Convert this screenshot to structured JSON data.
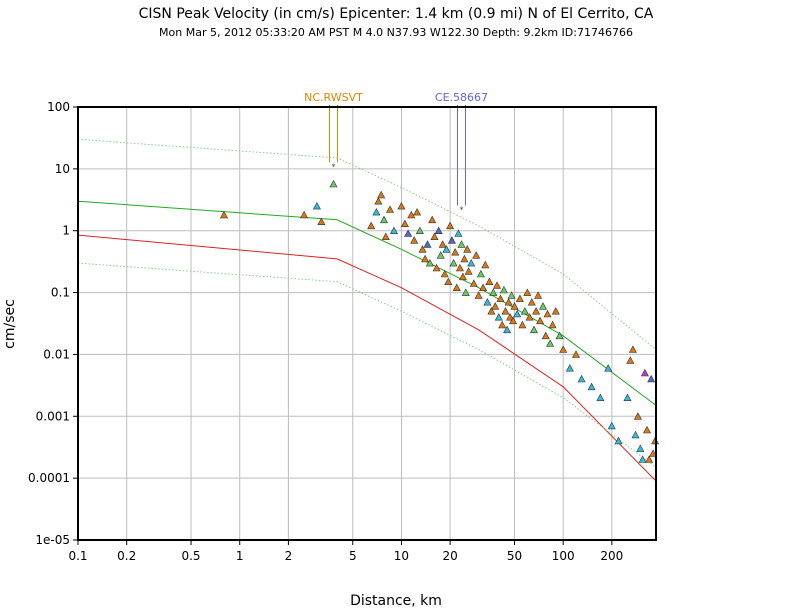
{
  "header": {
    "title": "CISN Peak Velocity (in cm/s) Epicenter: 1.4 km (0.9 mi) N of El Cerrito, CA",
    "subtitle": "Mon Mar  5, 2012 05:33:20 AM PST   M 4.0   N37.93 W122.30   Depth: 9.2km   ID:71746766"
  },
  "chart_data": {
    "type": "scatter",
    "title": "CISN Peak Velocity (in cm/s) Epicenter: 1.4 km (0.9 mi) N of El Cerrito, CA",
    "subtitle": "Mon Mar  5, 2012 05:33:20 AM PST   M 4.0   N37.93 W122.30   Depth: 9.2km   ID:71746766",
    "xlabel": "Distance, km",
    "ylabel": "cm/sec",
    "xscale": "log",
    "yscale": "log",
    "xlim": [
      0.1,
      375
    ],
    "ylim": [
      1e-05,
      100
    ],
    "grid": true,
    "x_ticks": [
      "0.1",
      "0.2",
      "0.5",
      "1",
      "2",
      "5",
      "10",
      "20",
      "50",
      "100",
      "200"
    ],
    "y_ticks": [
      "1e-05",
      "0.0001",
      "0.001",
      "0.01",
      "0.1",
      "1",
      "10",
      "100"
    ],
    "curves": [
      {
        "color": "#88cc88",
        "style": "dotted",
        "x": [
          0.1,
          4,
          10,
          30,
          100,
          375
        ],
        "y": [
          30,
          15,
          5,
          1.2,
          0.2,
          0.012
        ]
      },
      {
        "color": "#22aa22",
        "style": "solid",
        "x": [
          0.1,
          4,
          10,
          30,
          100,
          375
        ],
        "y": [
          3,
          1.5,
          0.5,
          0.12,
          0.02,
          0.0015
        ]
      },
      {
        "color": "#dd2222",
        "style": "solid",
        "x": [
          0.1,
          4,
          10,
          30,
          100,
          375
        ],
        "y": [
          0.85,
          0.35,
          0.12,
          0.025,
          0.003,
          9e-05
        ]
      },
      {
        "color": "#88cc88",
        "style": "dotted",
        "x": [
          0.1,
          4,
          10,
          30,
          100,
          375
        ],
        "y": [
          0.3,
          0.15,
          0.05,
          0.012,
          0.002,
          0.00015
        ]
      }
    ],
    "stations": [
      {
        "label": "NC.RWSVT",
        "color": "#dd8800",
        "x": 3.8,
        "y": 11
      },
      {
        "label": "CE.58667",
        "color": "#6666cc",
        "x": 23.5,
        "y": 2.2
      }
    ],
    "station_colors": [
      "#dd7711",
      "#66cc66",
      "#33bbdd",
      "#5566cc",
      "#cc33cc"
    ],
    "points": [
      [
        0.8,
        1.8,
        0
      ],
      [
        2.5,
        1.8,
        0
      ],
      [
        3.0,
        2.5,
        2
      ],
      [
        3.2,
        1.4,
        0
      ],
      [
        3.8,
        5.7,
        1
      ],
      [
        6.5,
        1.2,
        0
      ],
      [
        7.0,
        2.0,
        2
      ],
      [
        7.2,
        3.0,
        0
      ],
      [
        7.5,
        3.8,
        0
      ],
      [
        7.8,
        1.5,
        1
      ],
      [
        8.0,
        0.8,
        0
      ],
      [
        8.5,
        2.2,
        0
      ],
      [
        9.0,
        1.0,
        2
      ],
      [
        10.0,
        2.5,
        0
      ],
      [
        10.5,
        1.3,
        0
      ],
      [
        11.0,
        0.9,
        3
      ],
      [
        11.5,
        1.8,
        0
      ],
      [
        12.0,
        0.7,
        0
      ],
      [
        12.5,
        2.0,
        0
      ],
      [
        13.0,
        1.0,
        1
      ],
      [
        13.5,
        0.5,
        0
      ],
      [
        14.0,
        0.35,
        0
      ],
      [
        14.5,
        0.6,
        3
      ],
      [
        15.0,
        0.3,
        1
      ],
      [
        15.5,
        1.5,
        0
      ],
      [
        16.0,
        0.8,
        0
      ],
      [
        16.5,
        0.25,
        0
      ],
      [
        17.0,
        1.0,
        3
      ],
      [
        17.5,
        0.4,
        1
      ],
      [
        18.0,
        0.6,
        0
      ],
      [
        18.5,
        0.2,
        0
      ],
      [
        19.0,
        0.5,
        2
      ],
      [
        19.5,
        0.15,
        0
      ],
      [
        20.0,
        1.2,
        0
      ],
      [
        20.5,
        0.7,
        3
      ],
      [
        21.0,
        0.3,
        1
      ],
      [
        21.5,
        0.45,
        0
      ],
      [
        22.0,
        0.12,
        0
      ],
      [
        22.5,
        0.9,
        2
      ],
      [
        23.0,
        0.25,
        0
      ],
      [
        23.5,
        0.6,
        1
      ],
      [
        24.0,
        0.18,
        0
      ],
      [
        24.5,
        0.35,
        0
      ],
      [
        25.0,
        0.1,
        1
      ],
      [
        25.5,
        0.5,
        0
      ],
      [
        26.0,
        0.22,
        0
      ],
      [
        27.0,
        0.3,
        2
      ],
      [
        28.0,
        0.14,
        0
      ],
      [
        29.0,
        0.4,
        0
      ],
      [
        30.0,
        0.09,
        0
      ],
      [
        31.0,
        0.2,
        1
      ],
      [
        32.0,
        0.12,
        0
      ],
      [
        33.0,
        0.28,
        0
      ],
      [
        34.0,
        0.07,
        2
      ],
      [
        35.0,
        0.15,
        0
      ],
      [
        36.0,
        0.05,
        0
      ],
      [
        37.0,
        0.1,
        1
      ],
      [
        38.0,
        0.06,
        0
      ],
      [
        39.0,
        0.13,
        0
      ],
      [
        40.0,
        0.04,
        2
      ],
      [
        41.0,
        0.08,
        0
      ],
      [
        42.0,
        0.03,
        0
      ],
      [
        43.0,
        0.11,
        1
      ],
      [
        44.0,
        0.05,
        0
      ],
      [
        45.0,
        0.025,
        2
      ],
      [
        46.0,
        0.07,
        0
      ],
      [
        47.0,
        0.04,
        0
      ],
      [
        48.0,
        0.09,
        1
      ],
      [
        49.0,
        0.035,
        0
      ],
      [
        50.0,
        0.06,
        0
      ],
      [
        52.0,
        0.045,
        2
      ],
      [
        54.0,
        0.08,
        0
      ],
      [
        56.0,
        0.03,
        0
      ],
      [
        58.0,
        0.05,
        1
      ],
      [
        60.0,
        0.1,
        0
      ],
      [
        62.0,
        0.04,
        0
      ],
      [
        64.0,
        0.07,
        0
      ],
      [
        66.0,
        0.025,
        1
      ],
      [
        68.0,
        0.05,
        0
      ],
      [
        70.0,
        0.09,
        0
      ],
      [
        72.0,
        0.035,
        0
      ],
      [
        75.0,
        0.06,
        1
      ],
      [
        78.0,
        0.02,
        0
      ],
      [
        80.0,
        0.045,
        0
      ],
      [
        83.0,
        0.015,
        1
      ],
      [
        86.0,
        0.03,
        0
      ],
      [
        90.0,
        0.05,
        0
      ],
      [
        95.0,
        0.02,
        1
      ],
      [
        100.0,
        0.012,
        0
      ],
      [
        110.0,
        0.006,
        2
      ],
      [
        120.0,
        0.01,
        0
      ],
      [
        130.0,
        0.004,
        2
      ],
      [
        150.0,
        0.003,
        2
      ],
      [
        170.0,
        0.002,
        2
      ],
      [
        190.0,
        0.006,
        2
      ],
      [
        200.0,
        0.0007,
        2
      ],
      [
        220.0,
        0.0004,
        2
      ],
      [
        250.0,
        0.002,
        2
      ],
      [
        260.0,
        0.008,
        0
      ],
      [
        270.0,
        0.012,
        0
      ],
      [
        280.0,
        0.0005,
        2
      ],
      [
        290.0,
        0.001,
        0
      ],
      [
        300.0,
        0.0003,
        2
      ],
      [
        310.0,
        0.0002,
        2
      ],
      [
        320.0,
        0.005,
        4
      ],
      [
        330.0,
        0.0006,
        0
      ],
      [
        340.0,
        0.0002,
        0
      ],
      [
        350.0,
        0.004,
        3
      ],
      [
        360.0,
        0.00025,
        0
      ],
      [
        370.0,
        0.0004,
        0
      ]
    ]
  }
}
